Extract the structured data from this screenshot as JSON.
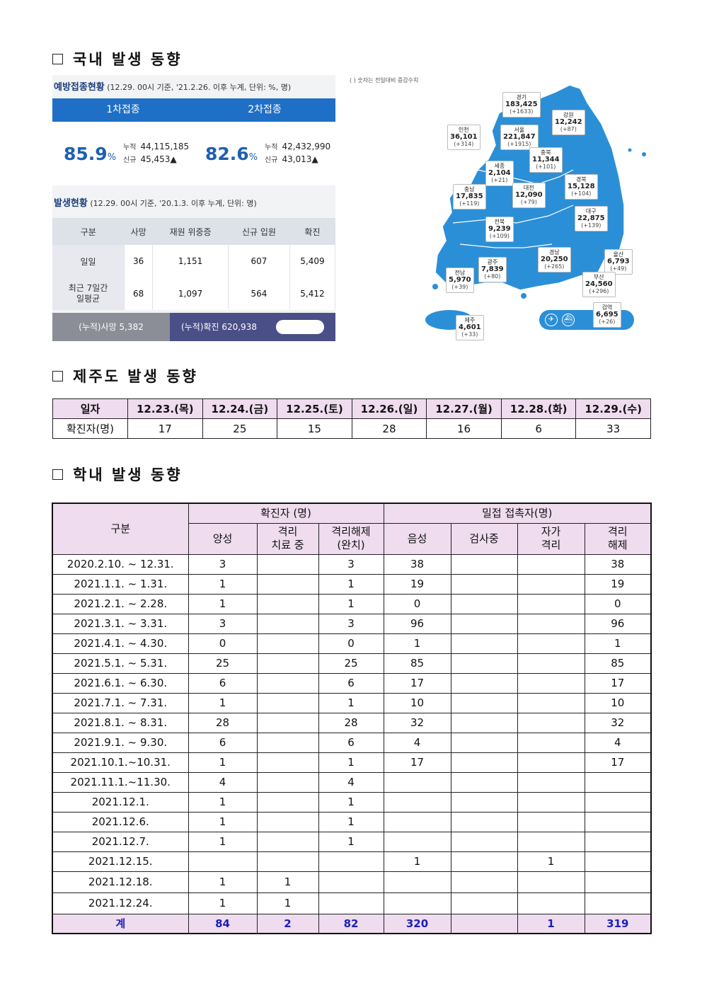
{
  "sections": {
    "domestic": "국내 발생 동향",
    "jeju": "제주도 발생 동향",
    "school": "학내 발생 동향"
  },
  "vax": {
    "title": "예방접종현황",
    "subtitle": "(12.29. 00시 기준, '21.2.26. 이후 누계, 단위: %, 명)",
    "tab1": "1차접종",
    "tab2": "2차접종",
    "first": {
      "pct": "85.9",
      "unit": "%",
      "cum_label": "누적",
      "cum": "44,115,185",
      "new_label": "신규",
      "new": "45,453▲"
    },
    "second": {
      "pct": "82.6",
      "unit": "%",
      "cum_label": "누적",
      "cum": "42,432,990",
      "new_label": "신규",
      "new": "43,013▲"
    }
  },
  "occ": {
    "title": "발생현황",
    "subtitle": "(12.29. 00시 기준, '20.1.3. 이후 누계, 단위: 명)",
    "headers": [
      "구분",
      "사망",
      "재원 위중증",
      "신규 입원",
      "확진"
    ],
    "rows": [
      {
        "label": "일일",
        "vals": [
          "36",
          "1,151",
          "607",
          "5,409"
        ]
      },
      {
        "label": "최근 7일간\n일평균",
        "vals": [
          "68",
          "1,097",
          "564",
          "5,412"
        ]
      }
    ],
    "foot_death": "(누적)사망  5,382",
    "foot_conf": "(누적)확진  620,938"
  },
  "map": {
    "note": "( ) 숫자는 전일대비 증감수치",
    "regions": [
      {
        "name": "경기",
        "n": "183,425",
        "d": "(+1633)"
      },
      {
        "name": "강원",
        "n": "12,242",
        "d": "(+87)"
      },
      {
        "name": "인천",
        "n": "36,101",
        "d": "(+314)"
      },
      {
        "name": "서울",
        "n": "221,847",
        "d": "(+1915)"
      },
      {
        "name": "충북",
        "n": "11,344",
        "d": "(+101)"
      },
      {
        "name": "세종",
        "n": "2,104",
        "d": "(+21)"
      },
      {
        "name": "경북",
        "n": "15,128",
        "d": "(+104)"
      },
      {
        "name": "충남",
        "n": "17,835",
        "d": "(+119)"
      },
      {
        "name": "대전",
        "n": "12,090",
        "d": "(+79)"
      },
      {
        "name": "대구",
        "n": "22,875",
        "d": "(+139)"
      },
      {
        "name": "전북",
        "n": "9,239",
        "d": "(+109)"
      },
      {
        "name": "경남",
        "n": "20,250",
        "d": "(+265)"
      },
      {
        "name": "울산",
        "n": "6,793",
        "d": "(+49)"
      },
      {
        "name": "광주",
        "n": "7,839",
        "d": "(+80)"
      },
      {
        "name": "전남",
        "n": "5,970",
        "d": "(+39)"
      },
      {
        "name": "부산",
        "n": "24,560",
        "d": "(+296)"
      },
      {
        "name": "검역",
        "n": "6,695",
        "d": "(+26)"
      },
      {
        "name": "제주",
        "n": "4,601",
        "d": "(+33)"
      }
    ]
  },
  "jeju_table": {
    "header": [
      "일자",
      "12.23.(목)",
      "12.24.(금)",
      "12.25.(토)",
      "12.26.(일)",
      "12.27.(월)",
      "12.28.(화)",
      "12.29.(수)"
    ],
    "row": [
      "확진자(명)",
      "17",
      "25",
      "15",
      "28",
      "16",
      "6",
      "33"
    ]
  },
  "school_table": {
    "h_gubun": "구분",
    "h_conf": "확진자 (명)",
    "h_contact": "밀접 접촉자(명)",
    "sub": [
      "양성",
      "격리\n치료 중",
      "격리해제\n(완치)",
      "음성",
      "검사중",
      "자가\n격리",
      "격리\n해제"
    ],
    "rows": [
      [
        "2020.2.10.  ~  12.31.",
        "3",
        "",
        "3",
        "38",
        "",
        "",
        "38"
      ],
      [
        "2021.1.1.  ~  1.31.",
        "1",
        "",
        "1",
        "19",
        "",
        "",
        "19"
      ],
      [
        "2021.2.1.  ~  2.28.",
        "1",
        "",
        "1",
        "0",
        "",
        "",
        "0"
      ],
      [
        "2021.3.1.  ~  3.31.",
        "3",
        "",
        "3",
        "96",
        "",
        "",
        "96"
      ],
      [
        "2021.4.1.  ~  4.30.",
        "0",
        "",
        "0",
        "1",
        "",
        "",
        "1"
      ],
      [
        "2021.5.1.  ~  5.31.",
        "25",
        "",
        "25",
        "85",
        "",
        "",
        "85"
      ],
      [
        "2021.6.1.  ~  6.30.",
        "6",
        "",
        "6",
        "17",
        "",
        "",
        "17"
      ],
      [
        "2021.7.1.  ~  7.31.",
        "1",
        "",
        "1",
        "10",
        "",
        "",
        "10"
      ],
      [
        "2021.8.1.  ~  8.31.",
        "28",
        "",
        "28",
        "32",
        "",
        "",
        "32"
      ],
      [
        "2021.9.1.  ~  9.30.",
        "6",
        "",
        "6",
        "4",
        "",
        "",
        "4"
      ],
      [
        "2021.10.1.~10.31.",
        "1",
        "",
        "1",
        "17",
        "",
        "",
        "17"
      ],
      [
        "2021.11.1.~11.30.",
        "4",
        "",
        "4",
        "",
        "",
        "",
        ""
      ],
      [
        "2021.12.1.",
        "1",
        "",
        "1",
        "",
        "",
        "",
        ""
      ],
      [
        "2021.12.6.",
        "1",
        "",
        "1",
        "",
        "",
        "",
        ""
      ],
      [
        "2021.12.7.",
        "1",
        "",
        "1",
        "",
        "",
        "",
        ""
      ],
      [
        "2021.12.15.",
        "",
        "",
        "",
        "1",
        "",
        "1",
        ""
      ],
      [
        "2021.12.18.",
        "1",
        "1",
        "",
        "",
        "",
        "",
        ""
      ],
      [
        "2021.12.24.",
        "1",
        "1",
        "",
        "",
        "",
        "",
        ""
      ]
    ],
    "total": [
      "계",
      "84",
      "2",
      "82",
      "320",
      "",
      "1",
      "319"
    ]
  },
  "colors": {
    "header_pink": "#efdcef",
    "vax_blue": "#1f6fc6",
    "total_text": "#1a1fb8",
    "map_blue": "#2b8fd8"
  }
}
